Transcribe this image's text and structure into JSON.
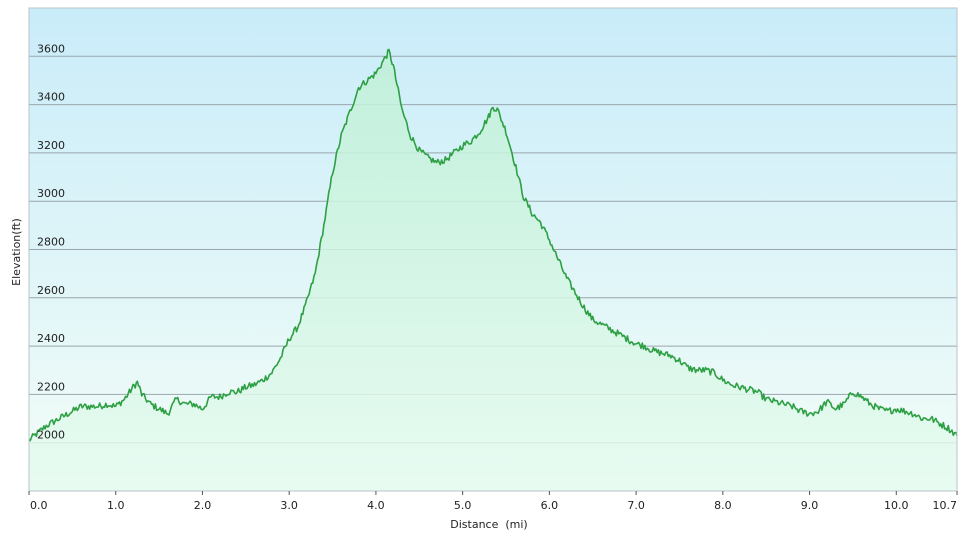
{
  "chart_data": {
    "type": "area",
    "xlabel": "Distance  (mi)",
    "ylabel": "Elevation(ft)",
    "xlim": [
      0,
      10.7
    ],
    "ylim": [
      1800,
      3800
    ],
    "grid": true,
    "x_ticks": [
      0,
      1,
      2,
      3,
      4,
      5,
      6,
      7,
      8,
      9,
      10,
      10.7
    ],
    "x_tick_labels": [
      "0.0",
      "1.0",
      "2.0",
      "3.0",
      "4.0",
      "5.0",
      "6.0",
      "7.0",
      "8.0",
      "9.0",
      "10.0",
      "10.7"
    ],
    "y_ticks": [
      2000,
      2200,
      2400,
      2600,
      2800,
      3000,
      3200,
      3400,
      3600
    ],
    "y_tick_labels": [
      "2000",
      "2200",
      "2400",
      "2600",
      "2800",
      "3000",
      "3200",
      "3400",
      "3600"
    ],
    "line_color": "#2ea043",
    "bg_top_color": "#c9ecf9",
    "bg_bottom_color": "#f3fdf8",
    "fill_color": "#bff0d6",
    "series": [
      {
        "x": [
          0.0,
          0.1,
          0.2,
          0.3,
          0.4,
          0.5,
          0.6,
          0.7,
          0.8,
          0.9,
          1.0,
          1.1,
          1.2,
          1.25,
          1.3,
          1.4,
          1.5,
          1.6,
          1.7,
          1.8,
          1.9,
          2.0,
          2.1,
          2.2,
          2.3,
          2.4,
          2.5,
          2.6,
          2.7,
          2.8,
          2.9,
          3.0,
          3.1,
          3.2,
          3.3,
          3.4,
          3.5,
          3.6,
          3.7,
          3.8,
          3.9,
          4.0,
          4.1,
          4.15,
          4.2,
          4.3,
          4.4,
          4.5,
          4.6,
          4.7,
          4.8,
          4.9,
          5.0,
          5.1,
          5.2,
          5.3,
          5.35,
          5.4,
          5.5,
          5.6,
          5.7,
          5.8,
          5.9,
          6.0,
          6.1,
          6.2,
          6.3,
          6.4,
          6.5,
          6.6,
          6.7,
          6.8,
          6.9,
          7.0,
          7.1,
          7.2,
          7.3,
          7.4,
          7.5,
          7.6,
          7.7,
          7.8,
          7.9,
          8.0,
          8.1,
          8.2,
          8.3,
          8.4,
          8.5,
          8.6,
          8.7,
          8.8,
          8.9,
          9.0,
          9.1,
          9.2,
          9.3,
          9.4,
          9.5,
          9.6,
          9.7,
          9.8,
          9.9,
          10.0,
          10.1,
          10.2,
          10.3,
          10.4,
          10.5,
          10.6,
          10.7
        ],
        "y": [
          2010,
          2040,
          2070,
          2090,
          2110,
          2130,
          2150,
          2150,
          2150,
          2160,
          2150,
          2180,
          2230,
          2250,
          2200,
          2160,
          2140,
          2120,
          2180,
          2160,
          2160,
          2140,
          2190,
          2190,
          2210,
          2210,
          2230,
          2240,
          2260,
          2290,
          2350,
          2430,
          2480,
          2580,
          2700,
          2900,
          3120,
          3270,
          3370,
          3470,
          3500,
          3530,
          3590,
          3620,
          3560,
          3380,
          3270,
          3210,
          3180,
          3160,
          3170,
          3200,
          3230,
          3250,
          3290,
          3350,
          3390,
          3380,
          3290,
          3160,
          3020,
          2950,
          2910,
          2840,
          2760,
          2680,
          2620,
          2560,
          2510,
          2490,
          2470,
          2450,
          2430,
          2410,
          2400,
          2380,
          2370,
          2360,
          2340,
          2310,
          2300,
          2300,
          2290,
          2260,
          2240,
          2230,
          2220,
          2210,
          2180,
          2170,
          2160,
          2150,
          2130,
          2120,
          2130,
          2170,
          2140,
          2160,
          2210,
          2190,
          2160,
          2140,
          2130,
          2140,
          2130,
          2120,
          2100,
          2100,
          2080,
          2060,
          2030
        ]
      }
    ]
  }
}
